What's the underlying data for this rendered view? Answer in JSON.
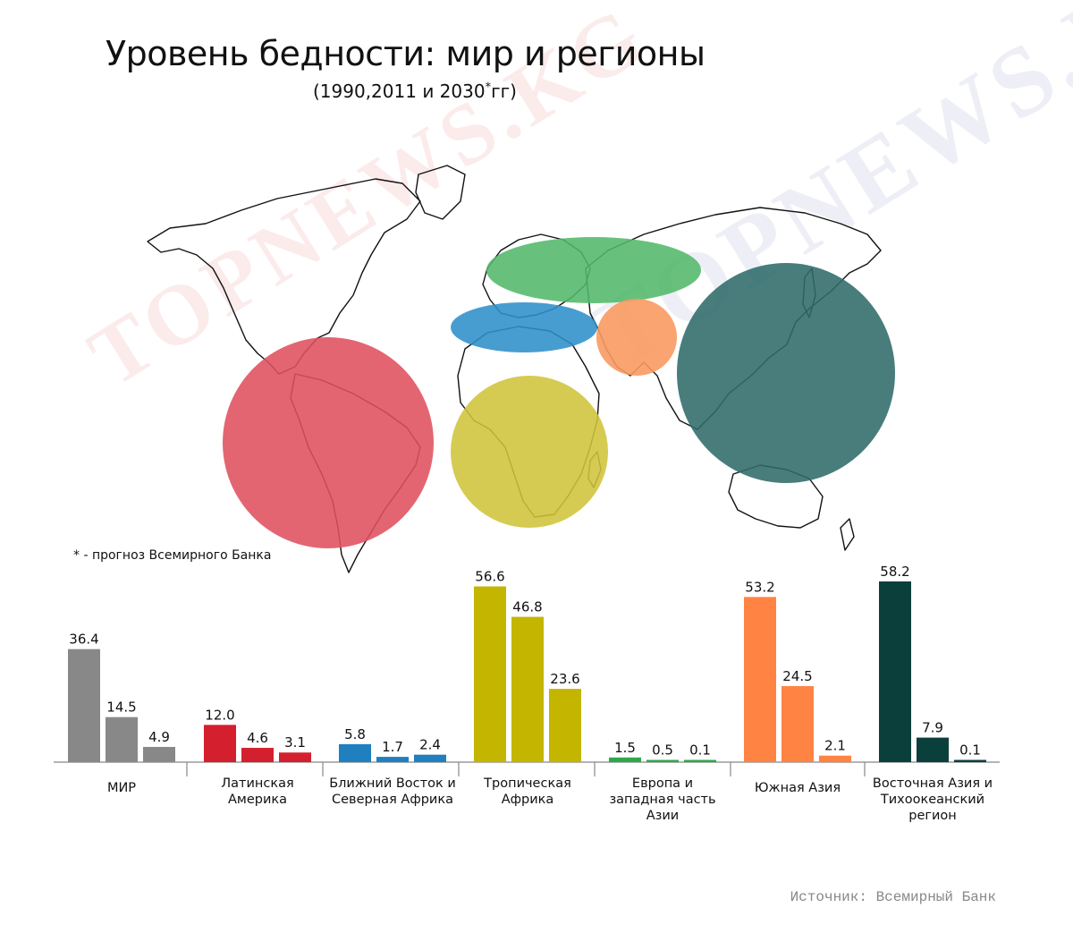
{
  "header": {
    "title": "Уровень бедности: мир и регионы",
    "subtitle_main": "(1990,2011 и 2030",
    "subtitle_star": "*",
    "subtitle_end": "гг)"
  },
  "note": "* - прогноз Всемирного Банка",
  "source": "Источник: Всемирный Банк",
  "watermark": "TOPNEWS.KG",
  "map_circles": [
    {
      "region": "Латинская Америка",
      "color": "#e0505e"
    },
    {
      "region": "Тропическая Африка",
      "color": "#cfc43a"
    },
    {
      "region": "Европа и западная часть Азии",
      "color": "#52b86a"
    },
    {
      "region": "Ближний Восток и Северная Африка",
      "color": "#2e8fc8"
    },
    {
      "region": "Южная Азия",
      "color": "#f89a62"
    },
    {
      "region": "Восточная Азия и Тихоокеанский регион",
      "color": "#2f6b6a"
    }
  ],
  "chart_data": {
    "type": "bar",
    "title": "Уровень бедности: мир и регионы",
    "series_years": [
      "1990",
      "2011",
      "2030*"
    ],
    "ylim": [
      0,
      60
    ],
    "groups": [
      {
        "label_lines": [
          "МИР"
        ],
        "values": [
          36.4,
          14.5,
          4.9
        ],
        "labels": [
          "36.4",
          "14.5",
          "4.9"
        ],
        "color": "#888888"
      },
      {
        "label_lines": [
          "Латинская",
          "Америка"
        ],
        "values": [
          12.0,
          4.6,
          3.1
        ],
        "labels": [
          "12.0",
          "4.6",
          "3.1"
        ],
        "color": "#d4202e"
      },
      {
        "label_lines": [
          "Ближний Восток и",
          "Северная Африка"
        ],
        "values": [
          5.8,
          1.7,
          2.4
        ],
        "labels": [
          "5.8",
          "1.7",
          "2.4"
        ],
        "color": "#1f7fbf"
      },
      {
        "label_lines": [
          "Тропическая",
          "Африка"
        ],
        "values": [
          56.6,
          46.8,
          23.6
        ],
        "labels": [
          "56.6",
          "46.8",
          "23.6"
        ],
        "color": "#c4b500"
      },
      {
        "label_lines": [
          "Европа и",
          "западная часть",
          "Азии"
        ],
        "values": [
          1.5,
          0.5,
          0.1
        ],
        "labels": [
          "1.5",
          "0.5",
          "0.1"
        ],
        "color": "#2ea84a"
      },
      {
        "label_lines": [
          "Южная Азия"
        ],
        "values": [
          53.2,
          24.5,
          2.1
        ],
        "labels": [
          "53.2",
          "24.5",
          "2.1"
        ],
        "color": "#ff8443"
      },
      {
        "label_lines": [
          "Восточная Азия и",
          "Тихоокеанский",
          "регион"
        ],
        "values": [
          58.2,
          7.9,
          0.1
        ],
        "labels": [
          "58.2",
          "7.9",
          "0.1"
        ],
        "color": "#0b3f3c"
      }
    ]
  }
}
